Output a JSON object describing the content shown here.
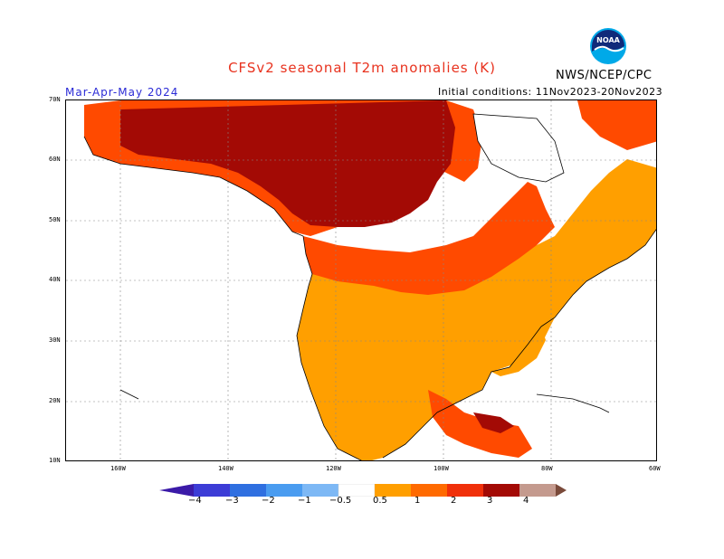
{
  "title": "CFSv2 seasonal T2m anomalies (K)",
  "period": "Mar-Apr-May 2024",
  "initial_conditions": "Initial conditions: 11Nov2023-20Nov2023",
  "agency": "NWS/NCEP/CPC",
  "logo": {
    "icon": "noaa-logo",
    "text": "NOAA"
  },
  "lat_labels": [
    "70N",
    "60N",
    "50N",
    "40N",
    "30N",
    "20N",
    "10N"
  ],
  "lon_labels": [
    "160W",
    "140W",
    "120W",
    "100W",
    "80W",
    "60W"
  ],
  "colorbar": {
    "colors": [
      "#3b1aa8",
      "#3c3cd6",
      "#2f6fe0",
      "#4a9cf0",
      "#7db8f5",
      "#ffffff",
      "#ff9f00",
      "#ff6a00",
      "#f0300a",
      "#a30a05",
      "#c49a8e",
      "#7a4a3a"
    ],
    "labels": [
      "−4",
      "−3",
      "−2",
      "−1",
      "−0.5",
      "0.5",
      "1",
      "2",
      "3",
      "4"
    ]
  },
  "map_colors": {
    "anom_0_5_1": "#ff9f00",
    "anom_1_2": "#ff4a00",
    "anom_2_3": "#e8280c",
    "anom_3_4": "#a30a05",
    "land_outline": "#000000",
    "grid": "#888888"
  }
}
